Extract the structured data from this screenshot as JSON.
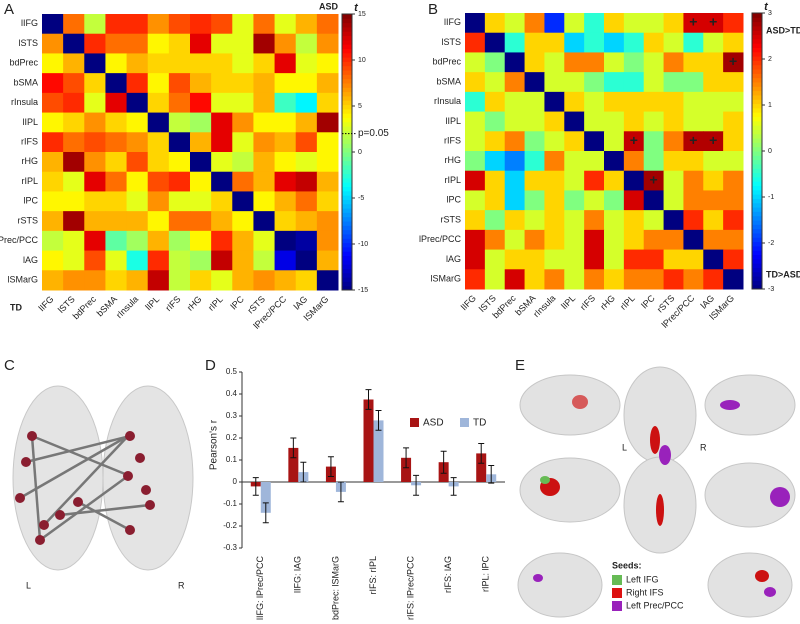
{
  "chart_data": [
    {
      "type": "heatmap",
      "panel": "A",
      "title": "ASD",
      "corner_label": "TD",
      "cbar_label": "t",
      "categories": [
        "lIFG",
        "lSTS",
        "bdPrec",
        "bSMA",
        "rInsula",
        "lIPL",
        "rIFS",
        "rHG",
        "rIPL",
        "lPC",
        "rSTS",
        "lPrec/PCC",
        "lAG",
        "lSMarG"
      ],
      "values": [
        [
          -15,
          8,
          2,
          10,
          10,
          7,
          9,
          10,
          9,
          3,
          8,
          3,
          6,
          8
        ],
        [
          7,
          -15,
          10,
          8,
          8,
          4,
          5,
          12,
          3,
          3,
          14,
          7,
          2,
          7
        ],
        [
          4,
          6,
          -15,
          4,
          6,
          5,
          5,
          5,
          5,
          3,
          5,
          12,
          3,
          4
        ],
        [
          11,
          9,
          5,
          -15,
          10,
          4,
          9,
          6,
          5,
          5,
          6,
          4,
          4,
          6
        ],
        [
          9,
          10,
          3,
          12,
          -15,
          5,
          8,
          11,
          3,
          3,
          6,
          -2,
          -4,
          5
        ],
        [
          4,
          5,
          7,
          5,
          4,
          -15,
          2,
          1,
          12,
          7,
          4,
          4,
          6,
          14
        ],
        [
          10,
          8,
          9,
          8,
          7,
          5,
          -15,
          6,
          12,
          3,
          7,
          6,
          9,
          4
        ],
        [
          6,
          14,
          7,
          5,
          9,
          5,
          4,
          -15,
          3,
          2,
          6,
          4,
          3,
          4
        ],
        [
          5,
          3,
          12,
          8,
          4,
          9,
          10,
          4,
          -15,
          8,
          6,
          12,
          13,
          6
        ],
        [
          4,
          4,
          5,
          5,
          3,
          7,
          3,
          3,
          5,
          -15,
          4,
          6,
          8,
          5
        ],
        [
          6,
          14,
          6,
          6,
          6,
          4,
          8,
          8,
          6,
          4,
          -15,
          5,
          6,
          7
        ],
        [
          2,
          3,
          12,
          -1,
          1,
          6,
          1,
          4,
          10,
          6,
          3,
          -15,
          -14,
          7
        ],
        [
          4,
          3,
          9,
          3,
          -3,
          10,
          2,
          1,
          13,
          6,
          2,
          -12,
          -15,
          6
        ],
        [
          6,
          7,
          7,
          5,
          6,
          13,
          2,
          5,
          3,
          6,
          7,
          6,
          5,
          -15
        ]
      ],
      "clim": [
        -15,
        15
      ],
      "cticks": [
        -15,
        -10,
        -5,
        0,
        5,
        10,
        15
      ],
      "colormap": "jet",
      "threshold": {
        "value": 2,
        "label": "p=0.05"
      }
    },
    {
      "type": "heatmap",
      "panel": "B",
      "cbar_label": "t",
      "cbar_top_label": "ASD>TD",
      "cbar_bottom_label": "TD>ASD",
      "categories": [
        "lIFG",
        "lSTS",
        "bdPrec",
        "bSMA",
        "rInsula",
        "lIPL",
        "rIFS",
        "rHG",
        "rIPL",
        "lPC",
        "rSTS",
        "lPrec/PCC",
        "lAG",
        "lSMarG"
      ],
      "values": [
        [
          -3,
          1,
          0.5,
          1.5,
          -2,
          0.5,
          -0.5,
          1,
          0.5,
          0.5,
          1,
          2.5,
          2.5,
          2
        ],
        [
          2,
          -3,
          -0.5,
          1,
          1,
          -1,
          -0.5,
          -1,
          -0.5,
          1,
          0.5,
          -0.5,
          0.5,
          1
        ],
        [
          0.5,
          0,
          -3,
          1,
          0.5,
          1.5,
          1.5,
          0.5,
          0,
          0.5,
          1.5,
          1,
          1,
          2.8
        ],
        [
          1,
          0.5,
          1.5,
          -3,
          0.5,
          0.5,
          0,
          -0.5,
          -0.5,
          0.5,
          0,
          0,
          1,
          1
        ],
        [
          -0.5,
          1,
          0.5,
          0.5,
          -3,
          1,
          0.5,
          1,
          1,
          1,
          1,
          0.5,
          0.5,
          0.5
        ],
        [
          0.5,
          0,
          0.5,
          0.5,
          1,
          -3,
          0.5,
          0.5,
          1,
          0.5,
          1,
          0.5,
          0.5,
          1
        ],
        [
          0.5,
          1,
          1.5,
          0,
          0.5,
          1,
          -3,
          0.5,
          2.6,
          0,
          1.5,
          2.7,
          2.7,
          1
        ],
        [
          0,
          -1,
          -1.5,
          -0.5,
          1.5,
          0.5,
          0.5,
          -3,
          1.5,
          0,
          1,
          1,
          0.5,
          0.5
        ],
        [
          2.5,
          1,
          -1,
          1,
          1,
          0.5,
          2,
          1,
          -3,
          2.8,
          0.5,
          1.5,
          1,
          1.5
        ],
        [
          0.5,
          1,
          -1,
          0,
          1,
          0,
          0.5,
          0,
          2.5,
          -3,
          0.5,
          1.5,
          1.5,
          1.5
        ],
        [
          1,
          0,
          1,
          0.5,
          1,
          0.5,
          1.5,
          0.5,
          1,
          0.5,
          -3,
          2,
          1,
          2
        ],
        [
          2.5,
          1.5,
          0.5,
          1.5,
          1,
          0.5,
          2.5,
          0.5,
          1,
          1.5,
          1.5,
          -3,
          1.5,
          1.5
        ],
        [
          2.5,
          0.5,
          1,
          1,
          0.5,
          0.5,
          2.5,
          0.5,
          2,
          2,
          1,
          1,
          -3,
          2
        ],
        [
          2,
          0.5,
          2.5,
          1,
          1.5,
          0.5,
          1.5,
          1,
          1.5,
          1.5,
          2,
          1.5,
          2,
          -3
        ]
      ],
      "clim": [
        -3,
        3
      ],
      "cticks": [
        -3,
        -2,
        -1,
        0,
        1,
        2,
        3
      ],
      "colormap": "jet",
      "marker": "+",
      "significant": [
        [
          0,
          11
        ],
        [
          0,
          12
        ],
        [
          2,
          13
        ],
        [
          6,
          8
        ],
        [
          6,
          11
        ],
        [
          6,
          12
        ],
        [
          8,
          9
        ]
      ]
    },
    {
      "type": "bar",
      "panel": "D",
      "ylabel": "Pearson's r",
      "categories": [
        "lIFG: lPrec/PCC",
        "lIFG: lAG",
        "bdPrec: lSMarG",
        "rIFS: rIPL",
        "rIFS: lPrec/PCC",
        "rIFS: lAG",
        "rIPL: lPC"
      ],
      "series": [
        {
          "name": "ASD",
          "color": "#a81414",
          "values": [
            -0.02,
            0.155,
            0.07,
            0.375,
            0.11,
            0.09,
            0.13
          ],
          "errors": [
            0.04,
            0.045,
            0.045,
            0.045,
            0.045,
            0.05,
            0.045
          ]
        },
        {
          "name": "TD",
          "color": "#9fb6da",
          "values": [
            -0.14,
            0.045,
            -0.045,
            0.28,
            -0.015,
            -0.02,
            0.035
          ],
          "errors": [
            0.045,
            0.045,
            0.045,
            0.045,
            0.045,
            0.04,
            0.04
          ]
        }
      ],
      "ylim": [
        -0.3,
        0.5
      ],
      "yticks": [
        -0.3,
        -0.2,
        -0.1,
        0,
        0.1,
        0.2,
        0.3,
        0.4,
        0.5
      ],
      "legend": "upper right"
    }
  ],
  "panel_c": {
    "label": "C",
    "left": "L",
    "right": "R"
  },
  "panel_e": {
    "label": "E",
    "left": "L",
    "right": "R",
    "legend_title": "Seeds:",
    "seeds": [
      {
        "name": "Left IFG",
        "color": "#66bb55"
      },
      {
        "name": "Right IFS",
        "color": "#dd1111"
      },
      {
        "name": "Left Prec/PCC",
        "color": "#9922bb"
      }
    ]
  }
}
